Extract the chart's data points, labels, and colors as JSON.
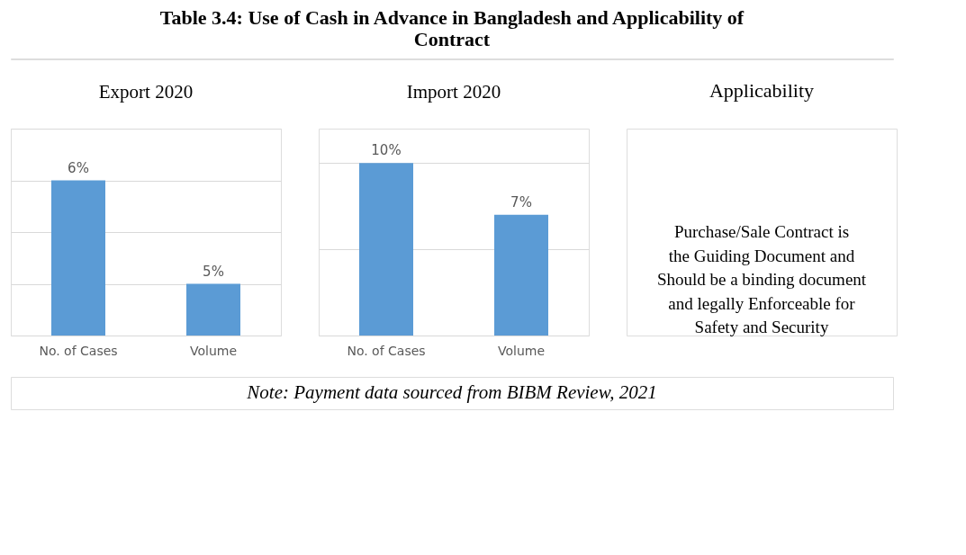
{
  "chart_data": [
    {
      "type": "other",
      "title": "Table 3.4: Use of Cash in Advance in Bangladesh and Applicability of Contract"
    },
    {
      "type": "bar",
      "title": "Export 2020",
      "categories": [
        "No. of Cases",
        "Volume"
      ],
      "values": [
        6,
        5
      ],
      "value_labels": [
        "6%",
        "5%"
      ],
      "color": "#5b9bd5",
      "ylim": [
        4.5,
        6.5
      ],
      "yticks": [
        4.5,
        5,
        5.5,
        6,
        6.5
      ],
      "grid": "y",
      "tick_labels": "x"
    },
    {
      "type": "bar",
      "title": "Import 2020",
      "categories": [
        "No. of Cases",
        "Volume"
      ],
      "values": [
        10,
        7
      ],
      "value_labels": [
        "10%",
        "7%"
      ],
      "color": "#5b9bd5",
      "ylim": [
        0,
        12
      ],
      "yticks": [
        0,
        5,
        10
      ],
      "grid": "y",
      "tick_labels": "x"
    },
    {
      "type": "other",
      "title": "Applicability",
      "annotations": [
        "Purchase/Sale Contract is the Guiding Document and Should be a binding document and legally Enforceable for Safety and Security"
      ]
    },
    {
      "type": "other",
      "annotations": [
        "Note: Payment data sourced from BIBM Review, 2021"
      ]
    }
  ]
}
